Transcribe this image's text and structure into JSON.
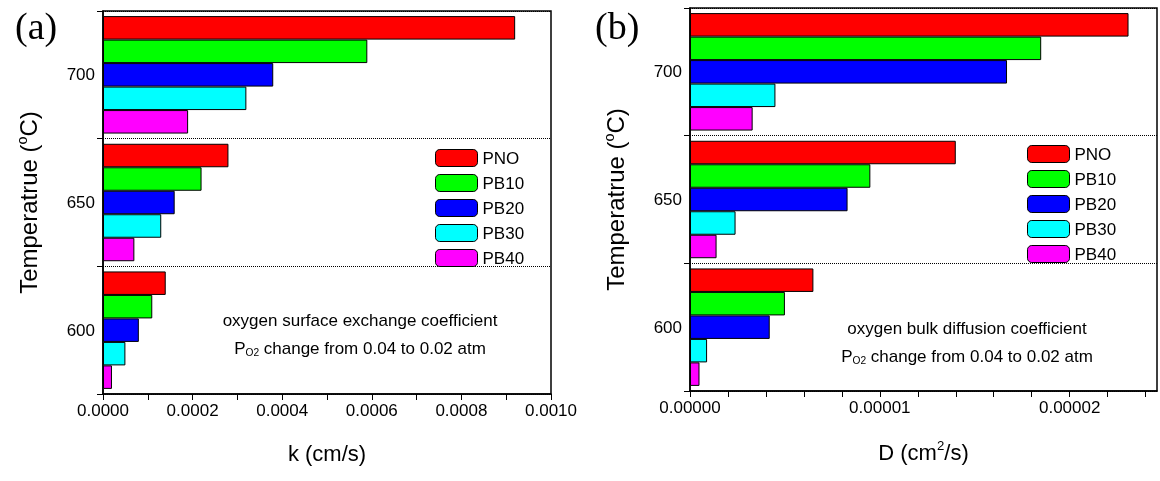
{
  "chart_data": [
    {
      "type": "bar",
      "title": "(a)",
      "orientation": "horizontal",
      "xlabel": "k (cm/s)",
      "ylabel": "Temperatrue ($^{o}$C)",
      "categories": [
        "700",
        "650",
        "600"
      ],
      "series": [
        {
          "name": "PNO",
          "color": "#ff0000",
          "values": [
            0.00092,
            0.00028,
            0.00014
          ]
        },
        {
          "name": "PB10",
          "color": "#00ff00",
          "values": [
            0.00059,
            0.00022,
            0.00011
          ]
        },
        {
          "name": "PB20",
          "color": "#0000ff",
          "values": [
            0.00038,
            0.00016,
            8e-05
          ]
        },
        {
          "name": "PB30",
          "color": "#00ffff",
          "values": [
            0.00032,
            0.00013,
            5e-05
          ]
        },
        {
          "name": "PB40",
          "color": "#ff00ff",
          "values": [
            0.00019,
            7e-05,
            2e-05
          ]
        }
      ],
      "xlim": [
        0,
        0.001
      ],
      "xticks": [
        {
          "value": 0,
          "label": "0.0000"
        },
        {
          "value": 0.0001,
          "label": null
        },
        {
          "value": 0.0002,
          "label": "0.0002"
        },
        {
          "value": 0.0003,
          "label": null
        },
        {
          "value": 0.0004,
          "label": "0.0004"
        },
        {
          "value": 0.0005,
          "label": null
        },
        {
          "value": 0.0006,
          "label": "0.0006"
        },
        {
          "value": 0.0007,
          "label": null
        },
        {
          "value": 0.0008,
          "label": "0.0008"
        },
        {
          "value": 0.0009,
          "label": null
        },
        {
          "value": 0.001,
          "label": "0.0010"
        }
      ],
      "grid": "y",
      "legend": "right",
      "annotations": [
        "oxygen surface exchange coefficient",
        "P$_{O2}$ change from 0.04 to 0.02 atm"
      ]
    },
    {
      "type": "bar",
      "title": "(b)",
      "orientation": "horizontal",
      "xlabel": "D (cm$^{2}$/s)",
      "ylabel": "Temperatrue ($^{o}$C)",
      "categories": [
        "700",
        "650",
        "600"
      ],
      "series": [
        {
          "name": "PNO",
          "color": "#ff0000",
          "values": [
            2.31e-05,
            1.4e-05,
            6.5e-06
          ]
        },
        {
          "name": "PB10",
          "color": "#00ff00",
          "values": [
            1.85e-05,
            9.5e-06,
            5e-06
          ]
        },
        {
          "name": "PB20",
          "color": "#0000ff",
          "values": [
            1.67e-05,
            8.3e-06,
            4.2e-06
          ]
        },
        {
          "name": "PB30",
          "color": "#00ffff",
          "values": [
            4.5e-06,
            2.4e-06,
            9e-07
          ]
        },
        {
          "name": "PB40",
          "color": "#ff00ff",
          "values": [
            3.3e-06,
            1.4e-06,
            5e-07
          ]
        }
      ],
      "xlim": [
        0,
        2.46e-05
      ],
      "xticks": [
        {
          "value": 0,
          "label": "0.00000"
        },
        {
          "value": 2e-06,
          "label": null
        },
        {
          "value": 4e-06,
          "label": null
        },
        {
          "value": 6e-06,
          "label": null
        },
        {
          "value": 8e-06,
          "label": null
        },
        {
          "value": 1e-05,
          "label": "0.00001"
        },
        {
          "value": 1.2e-05,
          "label": null
        },
        {
          "value": 1.4e-05,
          "label": null
        },
        {
          "value": 1.6e-05,
          "label": null
        },
        {
          "value": 1.8e-05,
          "label": null
        },
        {
          "value": 2e-05,
          "label": "0.00002"
        },
        {
          "value": 2.2e-05,
          "label": null
        },
        {
          "value": 2.4e-05,
          "label": null
        }
      ],
      "grid": "y",
      "legend": "right",
      "annotations": [
        "oxygen bulk diffusion coefficient",
        "P$_{O2}$ change from 0.04 to 0.02 atm"
      ]
    }
  ]
}
